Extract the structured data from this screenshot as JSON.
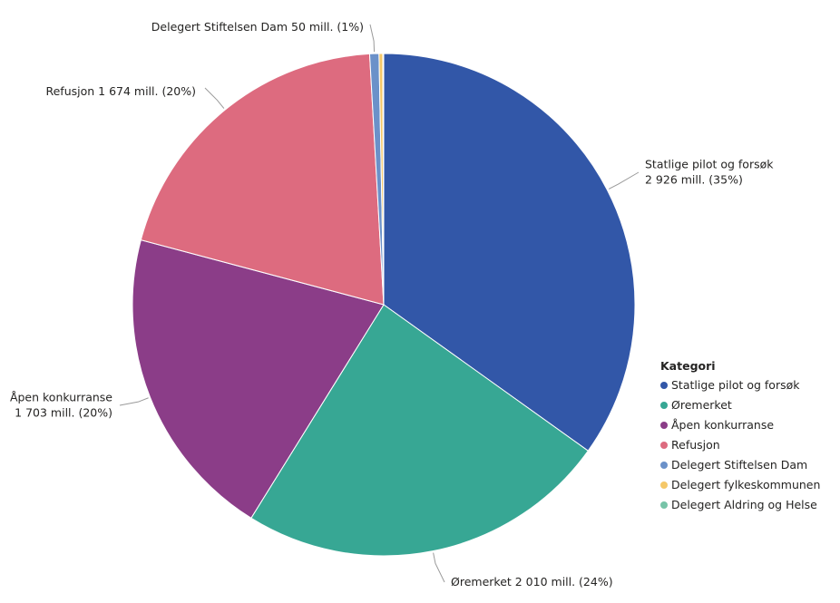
{
  "chart_data": {
    "type": "pie",
    "legend_title": "Kategori",
    "legend_position": "right",
    "slices": [
      {
        "name": "Statlige pilot og forsøk",
        "value": 2926,
        "percent": "35%",
        "color": "#3257A8",
        "label": [
          "Statlige pilot og forsøk",
          "2 926 mill. (35%)"
        ]
      },
      {
        "name": "Øremerket",
        "value": 2010,
        "percent": "24%",
        "color": "#37A794",
        "label": [
          "Øremerket 2 010 mill. (24%)"
        ]
      },
      {
        "name": "Åpen konkurranse",
        "value": 1703,
        "percent": "20%",
        "color": "#8B3D88",
        "label": [
          "Åpen konkurranse",
          "1 703 mill. (20%)"
        ]
      },
      {
        "name": "Refusjon",
        "value": 1674,
        "percent": "20%",
        "color": "#DD6B7F",
        "label": [
          "Refusjon 1 674 mill. (20%)"
        ]
      },
      {
        "name": "Delegert Stiftelsen Dam",
        "value": 50,
        "percent": "1%",
        "color": "#6B91C9",
        "label": [
          "Delegert Stiftelsen Dam 50 mill. (1%)"
        ]
      },
      {
        "name": "Delegert fylkeskommunen",
        "value": 20,
        "color": "#F5C869",
        "label": []
      },
      {
        "name": "Delegert Aldring og Helse",
        "value": 5,
        "color": "#77C4A8",
        "label": []
      }
    ]
  }
}
